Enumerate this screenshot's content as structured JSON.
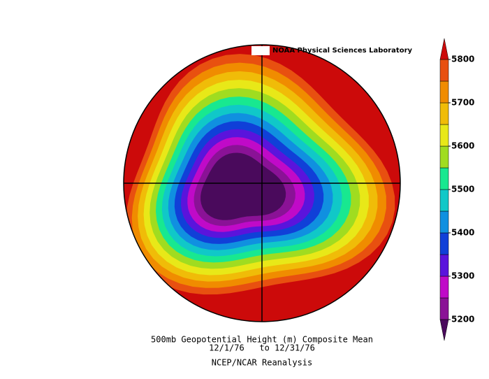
{
  "chart_data": {
    "type": "contour-map",
    "credit": "NOAA Physical Sciences Laboratory",
    "title": "500mb Geopotential Height (m) Composite Mean",
    "subtitle": "12/1/76   to 12/31/76",
    "source": "NCEP/NCAR Reanalysis",
    "colorbar": {
      "levels": [
        5200,
        5250,
        5300,
        5350,
        5400,
        5450,
        5500,
        5550,
        5600,
        5650,
        5700,
        5750,
        5800
      ],
      "colors": [
        "#8a1296",
        "#c00ac8",
        "#5a14dc",
        "#1040d8",
        "#1090e0",
        "#10c8c8",
        "#18e890",
        "#a0dc20",
        "#e8e818",
        "#f0bc08",
        "#f08c00",
        "#e85010"
      ],
      "under_color": "#4a0a5c",
      "over_color": "#cc0a0a",
      "ylim": [
        5200,
        5800
      ],
      "yticks": [
        5200,
        5300,
        5400,
        5500,
        5600,
        5700,
        5800
      ]
    }
  }
}
